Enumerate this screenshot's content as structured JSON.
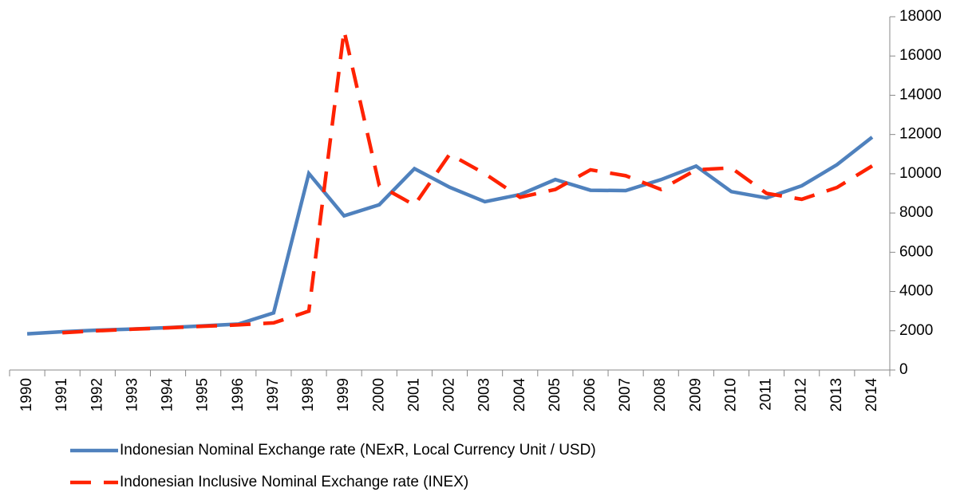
{
  "chart_data": {
    "type": "line",
    "categories": [
      "1990",
      "1991",
      "1992",
      "1993",
      "1994",
      "1995",
      "1996",
      "1997",
      "1998",
      "1999",
      "2000",
      "2001",
      "2002",
      "2003",
      "2004",
      "2005",
      "2006",
      "2007",
      "2008",
      "2009",
      "2010",
      "2011",
      "2012",
      "2013",
      "2014"
    ],
    "series": [
      {
        "name": "Indonesian Nominal Exchange rate (NExR, Local Currency Unit / USD)",
        "color": "#4f81bd",
        "dash": "solid",
        "values": [
          1843,
          1950,
          2030,
          2087,
          2161,
          2249,
          2342,
          2909,
          10014,
          7855,
          8422,
          10261,
          9311,
          8577,
          8939,
          9705,
          9159,
          9141,
          9699,
          10390,
          9090,
          8770,
          9387,
          10461,
          11865
        ]
      },
      {
        "name": "Indonesian Inclusive Nominal Exchange rate (INEX)",
        "color": "#ff2200",
        "dash": "dashed",
        "values": [
          null,
          1900,
          2000,
          2080,
          2150,
          2230,
          2300,
          2400,
          3000,
          17300,
          9400,
          8400,
          11000,
          10000,
          8800,
          9200,
          10200,
          9900,
          9200,
          10200,
          10300,
          9000,
          8700,
          9300,
          10400
        ]
      }
    ],
    "ylim": [
      0,
      18000
    ],
    "yticks": [
      0,
      2000,
      4000,
      6000,
      8000,
      10000,
      12000,
      14000,
      16000,
      18000
    ],
    "y_axis_side": "right"
  }
}
